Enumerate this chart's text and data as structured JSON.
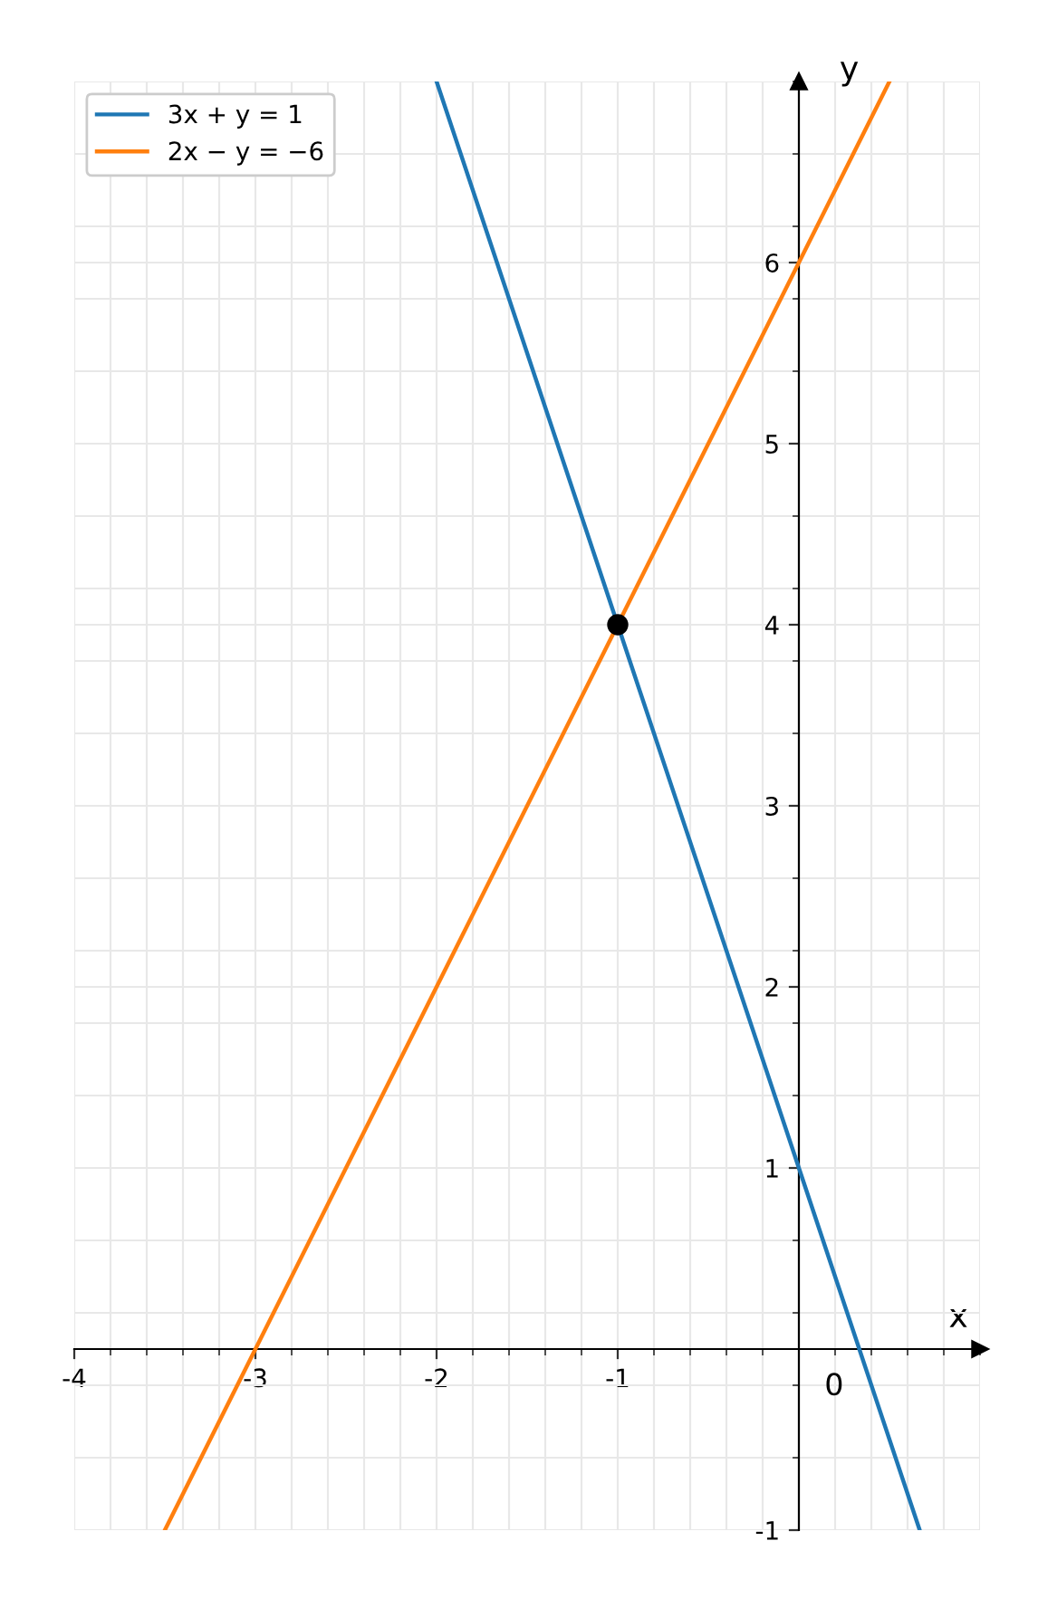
{
  "chart_data": {
    "type": "line",
    "xlabel": "x",
    "ylabel": "y",
    "xlim": [
      -4,
      1
    ],
    "ylim": [
      -1,
      7
    ],
    "xticks": [
      -4,
      -3,
      -2,
      -1
    ],
    "yticks": [
      -1,
      1,
      2,
      3,
      4,
      5,
      6
    ],
    "grid": true,
    "legend": "top left",
    "annotations": [
      "0"
    ],
    "series": [
      {
        "name": "3x + y = 1",
        "color": "#1f77b4",
        "x": [
          -2,
          -1,
          0,
          0.667
        ],
        "values": [
          7,
          4,
          1,
          -1
        ]
      },
      {
        "name": "2x − y = −6",
        "color": "#ff7f0e",
        "x": [
          -3.5,
          -3,
          -1,
          0,
          0.5
        ],
        "values": [
          -1,
          0,
          4,
          6,
          7
        ]
      },
      {
        "type": "scatter",
        "color": "#000000",
        "marker": "circle",
        "x": [
          -1
        ],
        "values": [
          4
        ]
      }
    ]
  }
}
